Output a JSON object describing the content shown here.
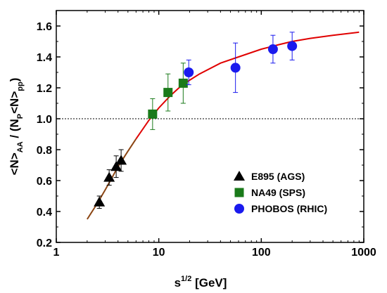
{
  "chart_data": {
    "type": "scatter",
    "xlabel": {
      "base": "s",
      "sup": "1/2",
      "unit": " [GeV]"
    },
    "ylabel": {
      "parts": [
        {
          "t": "<N>"
        },
        {
          "t": "AA",
          "sub": true
        },
        {
          "t": " / (N"
        },
        {
          "t": "P",
          "sub": true
        },
        {
          "t": "<N>"
        },
        {
          "t": "pp",
          "sub": true
        },
        {
          "t": ")"
        }
      ]
    },
    "xscale": "log",
    "xlim": [
      1,
      1000
    ],
    "ylim": [
      0.2,
      1.7
    ],
    "xticks": [
      1,
      10,
      100,
      1000
    ],
    "xtick_labels": [
      "1",
      "10",
      "100",
      "1000"
    ],
    "yticks": [
      0.2,
      0.4,
      0.6,
      0.8,
      1.0,
      1.2,
      1.4,
      1.6
    ],
    "ytick_labels": [
      "0.2",
      "0.4",
      "0.6",
      "0.8",
      "1.0",
      "1.2",
      "1.4",
      "1.6"
    ],
    "reference_line": {
      "y": 1.0,
      "style": "dotted"
    },
    "legend_position": "bottom-right",
    "series": [
      {
        "name": "E895 (AGS)",
        "marker": "triangle",
        "color": "#000000",
        "points": [
          {
            "x": 2.63,
            "y": 0.46,
            "err": 0.04
          },
          {
            "x": 3.28,
            "y": 0.62,
            "err": 0.05
          },
          {
            "x": 3.84,
            "y": 0.69,
            "err": 0.07
          },
          {
            "x": 4.29,
            "y": 0.73,
            "err": 0.07
          }
        ]
      },
      {
        "name": "NA49 (SPS)",
        "marker": "square",
        "color": "#1a7a1a",
        "points": [
          {
            "x": 8.7,
            "y": 1.03,
            "err": 0.1
          },
          {
            "x": 12.3,
            "y": 1.17,
            "err": 0.12
          },
          {
            "x": 17.3,
            "y": 1.23,
            "err": 0.13
          }
        ]
      },
      {
        "name": "PHOBOS (RHIC)",
        "marker": "circle",
        "color": "#1a1aee",
        "points": [
          {
            "x": 19.6,
            "y": 1.3,
            "err": 0.08
          },
          {
            "x": 56,
            "y": 1.33,
            "err": 0.16
          },
          {
            "x": 130,
            "y": 1.45,
            "err": 0.09
          },
          {
            "x": 200,
            "y": 1.47,
            "err": 0.09
          }
        ]
      }
    ],
    "fit_curve": {
      "color_low": "#8b4513",
      "color_high": "#e00000",
      "points": [
        {
          "x": 2.0,
          "y": 0.35
        },
        {
          "x": 2.5,
          "y": 0.45
        },
        {
          "x": 3.0,
          "y": 0.54
        },
        {
          "x": 3.5,
          "y": 0.62
        },
        {
          "x": 4.0,
          "y": 0.69
        },
        {
          "x": 5.0,
          "y": 0.79
        },
        {
          "x": 6.0,
          "y": 0.87
        },
        {
          "x": 8.0,
          "y": 0.99
        },
        {
          "x": 10.0,
          "y": 1.07
        },
        {
          "x": 13.0,
          "y": 1.15
        },
        {
          "x": 17.0,
          "y": 1.22
        },
        {
          "x": 25.0,
          "y": 1.29
        },
        {
          "x": 40.0,
          "y": 1.36
        },
        {
          "x": 60.0,
          "y": 1.4
        },
        {
          "x": 100.0,
          "y": 1.45
        },
        {
          "x": 150.0,
          "y": 1.48
        },
        {
          "x": 200.0,
          "y": 1.5
        },
        {
          "x": 300.0,
          "y": 1.52
        },
        {
          "x": 500.0,
          "y": 1.54
        },
        {
          "x": 900.0,
          "y": 1.56
        }
      ]
    }
  }
}
